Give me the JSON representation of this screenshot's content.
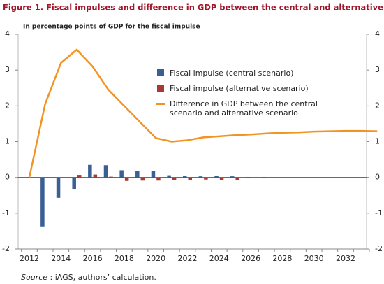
{
  "chart_data": {
    "type": "bar_line",
    "title": "Figure 1. Fiscal impulses and difference in GDP between the central and alternative scenarios",
    "subtitle": "In percentage points of GDP for the fiscal impulse",
    "source_label": "Source",
    "source": ": iAGS, authors’ calculation.",
    "categories": [
      "2012",
      null,
      "2014",
      null,
      "2016",
      null,
      "2018",
      null,
      "2020",
      null,
      "2022",
      null,
      "2024",
      null,
      "2026",
      null,
      "2028",
      null,
      "2030",
      null,
      "2032",
      null,
      null
    ],
    "series": [
      {
        "name": "Fiscal impulse (central scenario)",
        "type": "bar",
        "color": "#3a5f95",
        "values": [
          0,
          -1.37,
          -0.57,
          -0.32,
          0.35,
          0.34,
          0.2,
          0.18,
          0.17,
          0.06,
          0.04,
          0.03,
          0.05,
          0.03,
          0.01,
          0.01,
          -0.01,
          -0.01,
          -0.01,
          -0.01,
          -0.01,
          -0.01,
          0
        ]
      },
      {
        "name": "Fiscal impulse (alternative scenario)",
        "type": "bar",
        "color": "#a83a36",
        "values": [
          0,
          -0.02,
          -0.02,
          0.07,
          0.08,
          0.02,
          -0.1,
          -0.09,
          -0.09,
          -0.07,
          -0.07,
          -0.06,
          -0.07,
          -0.08,
          0,
          0,
          0,
          0,
          0,
          0,
          0,
          0,
          0
        ]
      },
      {
        "name": "Difference in GDP between the central scenario and alternative scenario",
        "type": "line",
        "axis": "y2",
        "color": "#f39422",
        "values": [
          0,
          2.05,
          3.2,
          3.57,
          3.1,
          2.45,
          2.0,
          1.55,
          1.1,
          1.0,
          1.04,
          1.12,
          1.15,
          1.18,
          1.2,
          1.23,
          1.25,
          1.26,
          1.28,
          1.29,
          1.3,
          1.3,
          1.29
        ]
      }
    ],
    "ylim": [
      -2,
      4
    ],
    "yticks": [
      -2,
      -1,
      0,
      1,
      2,
      3,
      4
    ],
    "y2lim": [
      -2,
      4
    ],
    "y2ticks": [
      -2,
      -1,
      0,
      1,
      2,
      3,
      4
    ]
  }
}
